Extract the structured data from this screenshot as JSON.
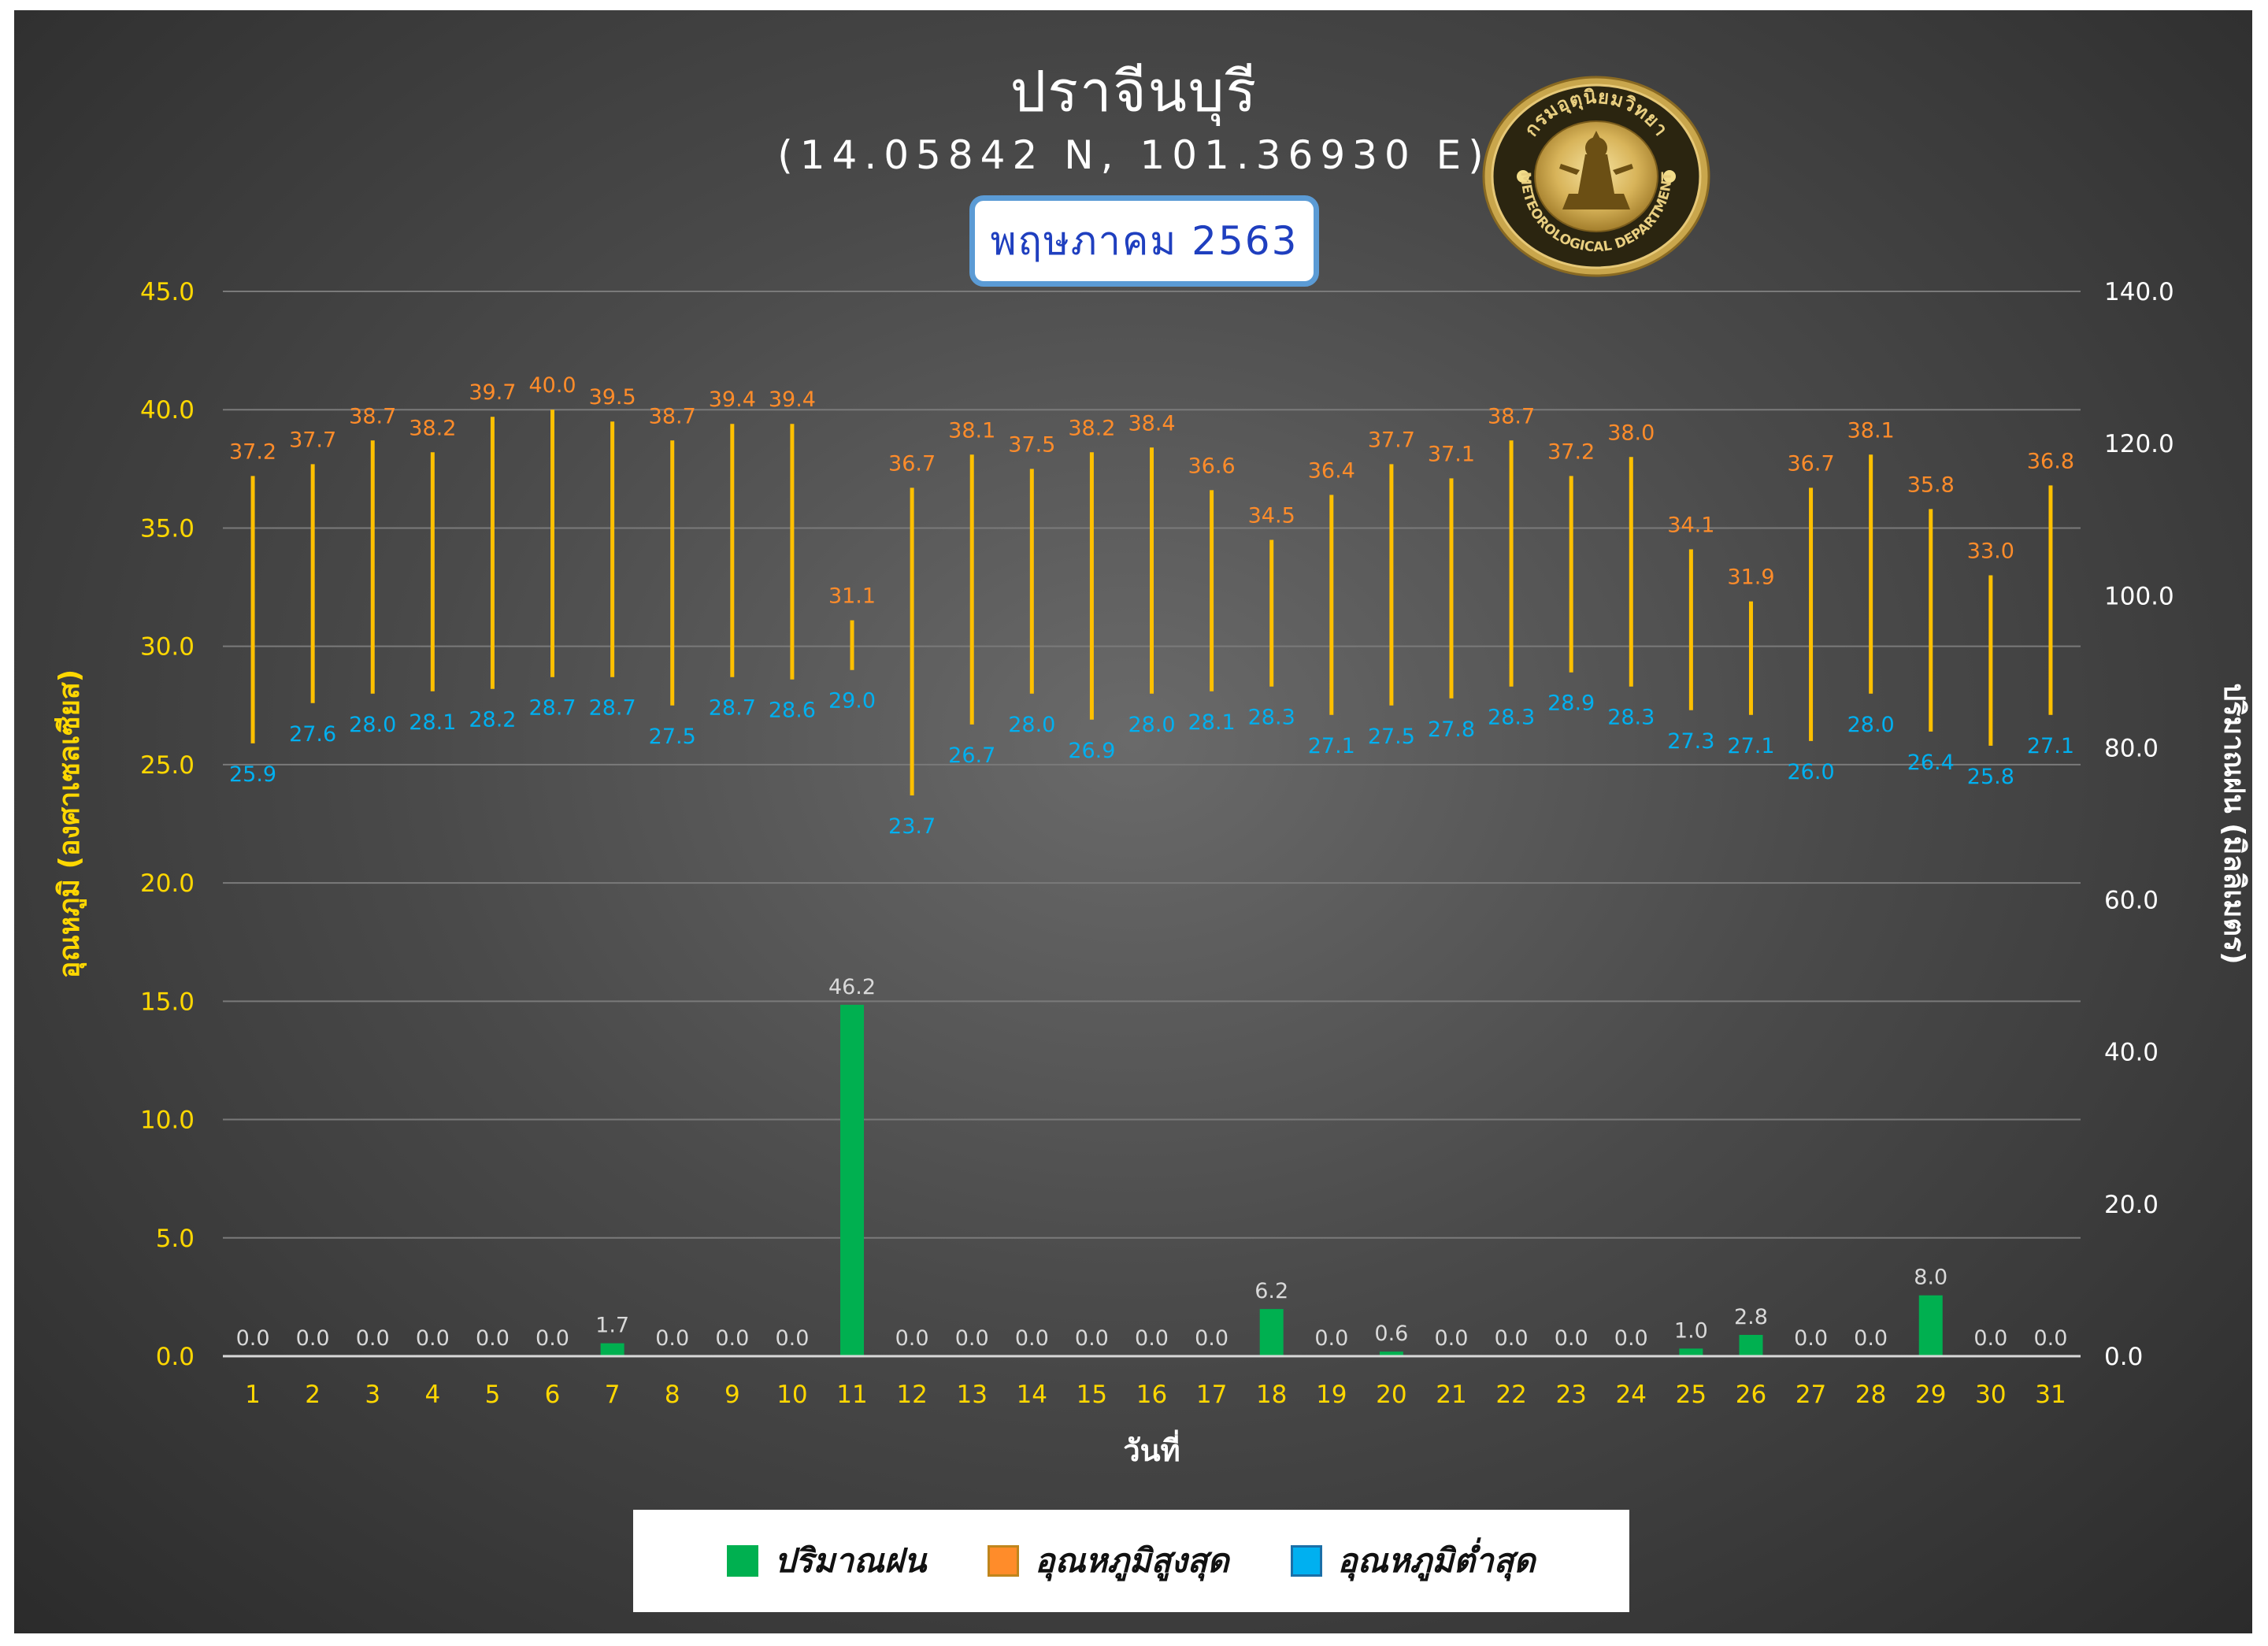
{
  "header": {
    "title": "ปราจีนบุรี",
    "coordinates": "(14.05842 N, 101.36930 E)",
    "month": "พฤษภาคม 2563"
  },
  "logo": {
    "text_top": "กรมอุตุนิยมวิทยา",
    "text_bottom": "METEOROLOGICAL DEPARTMENT"
  },
  "legend": {
    "rain": "ปริมาณฝน",
    "max": "อุณหภูมิสูงสุด",
    "min": "อุณหภูมิต่ำสุด"
  },
  "colors": {
    "rain": "#00b050",
    "max_label": "#ff8c2a",
    "min_label": "#00b0f0",
    "range_line": "#ffc000",
    "left_axis": "#ffd700",
    "right_axis": "#ffffff",
    "legend_max_swatch": "#ff8c2a",
    "legend_min_swatch": "#00b0f0"
  },
  "chart_data": {
    "type": "bar",
    "title": "ปราจีนบุรี",
    "subtitle": "(14.05842 N, 101.36930 E)",
    "xlabel": "วันที่",
    "ylabel": "อุณหภูมิ (องศาเซลเซียส)",
    "y2label": "ปริมาณฝน (มิลลิเมตร)",
    "ylim": [
      0,
      45
    ],
    "y2lim": [
      0,
      140
    ],
    "yticks": [
      "0.0",
      "5.0",
      "10.0",
      "15.0",
      "20.0",
      "25.0",
      "30.0",
      "35.0",
      "40.0",
      "45.0"
    ],
    "y2ticks": [
      "0.0",
      "20.0",
      "40.0",
      "60.0",
      "80.0",
      "100.0",
      "120.0",
      "140.0"
    ],
    "grid": true,
    "legend_position": "bottom",
    "categories": [
      "1",
      "2",
      "3",
      "4",
      "5",
      "6",
      "7",
      "8",
      "9",
      "10",
      "11",
      "12",
      "13",
      "14",
      "15",
      "16",
      "17",
      "18",
      "19",
      "20",
      "21",
      "22",
      "23",
      "24",
      "25",
      "26",
      "27",
      "28",
      "29",
      "30",
      "31"
    ],
    "series": [
      {
        "name": "ปริมาณฝน",
        "axis": "right",
        "values": [
          0.0,
          0.0,
          0.0,
          0.0,
          0.0,
          0.0,
          1.7,
          0.0,
          0.0,
          0.0,
          46.2,
          0.0,
          0.0,
          0.0,
          0.0,
          0.0,
          0.0,
          6.2,
          0.0,
          0.6,
          0.0,
          0.0,
          0.0,
          0.0,
          1.0,
          2.8,
          0.0,
          0.0,
          8.0,
          0.0,
          0.0
        ]
      },
      {
        "name": "อุณหภูมิสูงสุด",
        "axis": "left",
        "values": [
          37.2,
          37.7,
          38.7,
          38.2,
          39.7,
          40.0,
          39.5,
          38.7,
          39.4,
          39.4,
          31.1,
          36.7,
          38.1,
          37.5,
          38.2,
          38.4,
          36.6,
          34.5,
          36.4,
          37.7,
          37.1,
          38.7,
          37.2,
          38.0,
          34.1,
          31.9,
          36.7,
          38.1,
          35.8,
          33.0,
          36.8
        ]
      },
      {
        "name": "อุณหภูมิต่ำสุด",
        "axis": "left",
        "values": [
          25.9,
          27.6,
          28.0,
          28.1,
          28.2,
          28.7,
          28.7,
          27.5,
          28.7,
          28.6,
          29.0,
          23.7,
          26.7,
          28.0,
          26.9,
          28.0,
          28.1,
          28.3,
          27.1,
          27.5,
          27.8,
          28.3,
          28.9,
          28.3,
          27.3,
          27.1,
          26.0,
          28.0,
          26.4,
          25.8,
          27.1
        ]
      }
    ]
  }
}
